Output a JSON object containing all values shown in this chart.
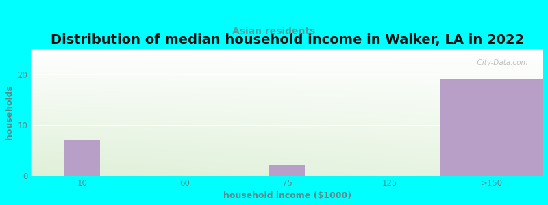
{
  "title": "Distribution of median household income in Walker, LA in 2022",
  "subtitle": "Asian residents",
  "xlabel": "household income ($1000)",
  "ylabel": "households",
  "bg_color": "#00FFFF",
  "bar_color": "#b89fc8",
  "categories": [
    "10",
    "60",
    "75",
    "125",
    ">150"
  ],
  "values": [
    7,
    0,
    2,
    0,
    19
  ],
  "ylim": [
    0,
    25
  ],
  "yticks": [
    0,
    10,
    20
  ],
  "title_fontsize": 14,
  "subtitle_fontsize": 10,
  "subtitle_color": "#5a9a9a",
  "axis_label_fontsize": 9,
  "tick_fontsize": 8.5,
  "tick_color": "#5a8a8a",
  "ylabel_color": "#5a8a8a",
  "xlabel_color": "#5a8a8a",
  "watermark": "  City-Data.com",
  "grid_color": "#ffffff",
  "gradient_top": "#f7f7f7",
  "gradient_bottom_left": "#dff0d8"
}
